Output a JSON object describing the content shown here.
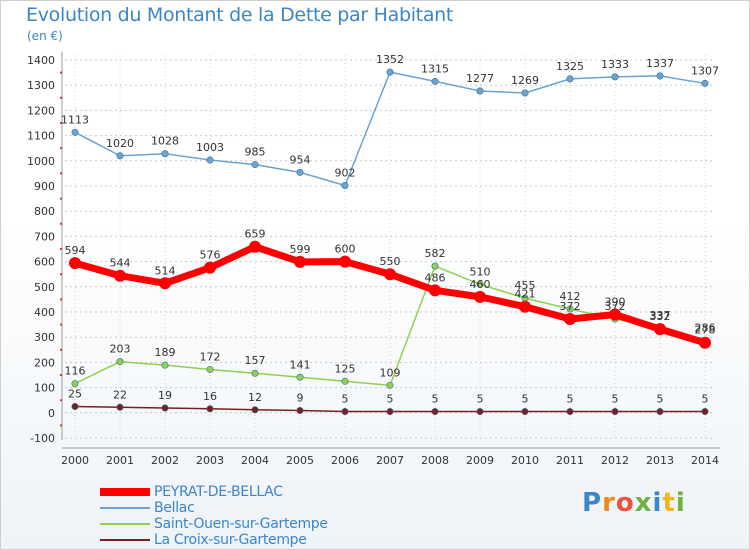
{
  "header": {
    "title": "Evolution du Montant de la Dette par Habitant",
    "unit": "(en €)"
  },
  "logo": {
    "text": "Proxiti",
    "letters": [
      "P",
      "r",
      "o",
      "x",
      "i",
      "t",
      "i"
    ]
  },
  "chart_data": {
    "type": "line",
    "title": "Evolution du Montant de la Dette par Habitant",
    "ylabel": "(en €)",
    "xlabel": "",
    "ylim": [
      -100,
      1400
    ],
    "yticks": [
      -100,
      0,
      100,
      200,
      300,
      400,
      500,
      600,
      700,
      800,
      900,
      1000,
      1100,
      1200,
      1300,
      1400
    ],
    "x": [
      "2000",
      "2001",
      "2002",
      "2003",
      "2004",
      "2005",
      "2006",
      "2007",
      "2008",
      "2009",
      "2010",
      "2011",
      "2012",
      "2013",
      "2014"
    ],
    "grid": "horizontal",
    "legend_position": "bottom-left",
    "series": [
      {
        "name": "PEYRAT-DE-BELLAC",
        "color": "#ff0000",
        "width": 7,
        "values": [
          594,
          544,
          514,
          576,
          659,
          599,
          600,
          550,
          486,
          460,
          421,
          372,
          390,
          332,
          278
        ]
      },
      {
        "name": "Bellac",
        "color": "#6ba3d1",
        "width": 1.5,
        "values": [
          1113,
          1020,
          1028,
          1003,
          985,
          954,
          902,
          1352,
          1315,
          1277,
          1269,
          1325,
          1333,
          1337,
          1307
        ]
      },
      {
        "name": "Saint-Ouen-sur-Gartempe",
        "color": "#8fd14f",
        "width": 1.5,
        "values": [
          116,
          203,
          189,
          172,
          157,
          141,
          125,
          109,
          582,
          510,
          455,
          412,
          372,
          337,
          286
        ]
      },
      {
        "name": "La Croix-sur-Gartempe",
        "color": "#7a1f1f",
        "width": 1.5,
        "values": [
          25,
          22,
          19,
          16,
          12,
          9,
          5,
          5,
          5,
          5,
          5,
          5,
          5,
          5,
          5
        ]
      }
    ]
  }
}
